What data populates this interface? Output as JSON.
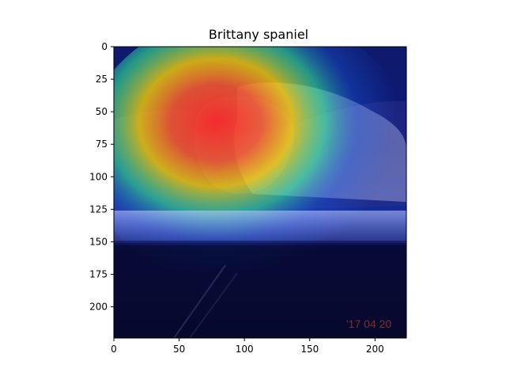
{
  "title": "Brittany spaniel",
  "axes": {
    "x": {
      "min": 0,
      "max": 224,
      "ticks": [
        0,
        50,
        100,
        150,
        200
      ]
    },
    "y": {
      "min": 0,
      "max": 224,
      "ticks": [
        0,
        25,
        50,
        75,
        100,
        125,
        150,
        175,
        200
      ],
      "inverted": true
    }
  },
  "image": {
    "description_for_render_only": "",
    "colors": {
      "background_dark": "#0b0f4a",
      "heat_hot": "#ff2a2a",
      "heat_warm": "#ffd400",
      "heat_mid": "#37ff9b",
      "heat_cool": "#1b6cff",
      "floor_band": "#8fa0ff",
      "shadow": "#060826"
    },
    "watermark_text": "'17 04 20"
  }
}
